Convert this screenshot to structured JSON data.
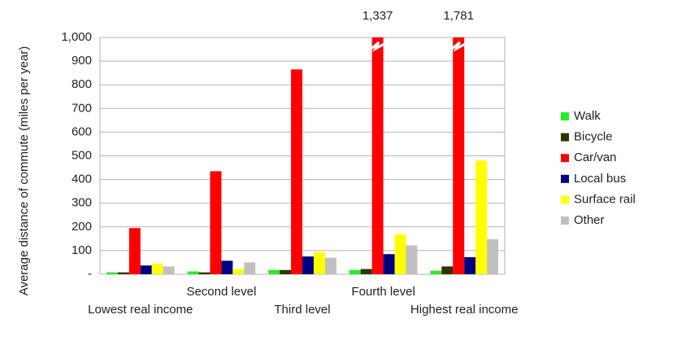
{
  "chart_data": {
    "type": "bar",
    "y_label": "Average distance of commute (miles per year)",
    "categories": [
      "Lowest real income",
      "Second level",
      "Third level",
      "Fourth level",
      "Highest real income"
    ],
    "series": [
      {
        "name": "Walk",
        "color": "#22ee22",
        "values": [
          8,
          12,
          18,
          18,
          15
        ]
      },
      {
        "name": "Bicycle",
        "color": "#333300",
        "values": [
          8,
          8,
          18,
          22,
          33
        ]
      },
      {
        "name": "Car/van",
        "color": "#ff0000",
        "values": [
          195,
          435,
          865,
          1337,
          1781
        ],
        "value_labels": [
          null,
          null,
          null,
          "1,337",
          "1,781"
        ]
      },
      {
        "name": "Local bus",
        "color": "#000080",
        "values": [
          37,
          57,
          75,
          85,
          72
        ]
      },
      {
        "name": "Surface rail",
        "color": "#ffff00",
        "values": [
          45,
          22,
          93,
          168,
          480
        ]
      },
      {
        "name": "Other",
        "color": "#c0c0c0",
        "values": [
          33,
          50,
          70,
          122,
          148
        ]
      }
    ],
    "ylim": [
      0,
      1000
    ],
    "yticks": [
      {
        "value": 0,
        "label": "-"
      },
      100,
      200,
      300,
      400,
      500,
      600,
      700,
      800,
      900,
      {
        "value": 1000,
        "label": "1,000"
      }
    ],
    "grid": true,
    "legend": "right"
  }
}
